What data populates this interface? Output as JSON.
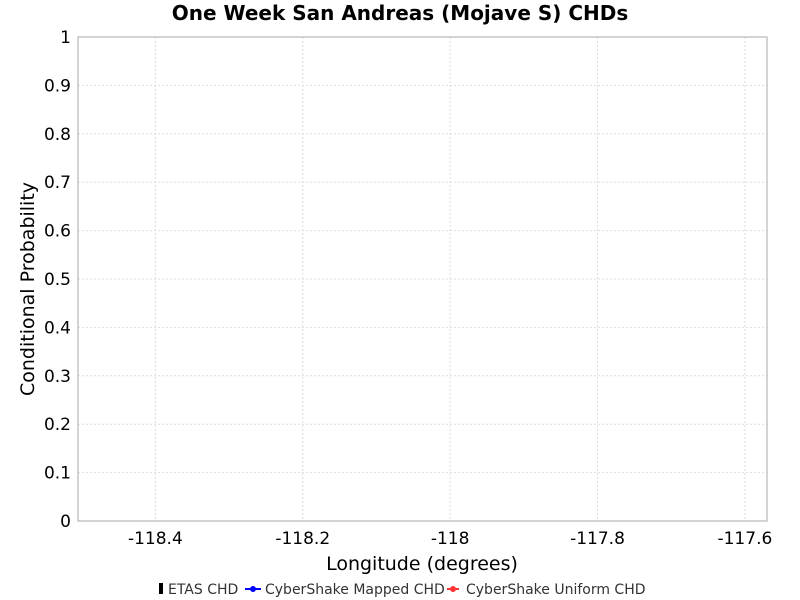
{
  "chart_data": {
    "type": "line",
    "title": "One Week San Andreas (Mojave S) CHDs",
    "xlabel": "Longitude (degrees)",
    "ylabel": "Conditional Probability",
    "xlim": [
      -118.505,
      -117.57
    ],
    "ylim": [
      0,
      1
    ],
    "x_ticks": [
      -118.4,
      -118.2,
      -118,
      -117.8,
      -117.6
    ],
    "x_tick_labels": [
      "-118.4",
      "-118.2",
      "-118",
      "-117.8",
      "-117.6"
    ],
    "y_ticks": [
      0,
      0.1,
      0.2,
      0.3,
      0.4,
      0.5,
      0.6,
      0.7,
      0.8,
      0.9,
      1
    ],
    "y_tick_labels": [
      "0",
      "0.1",
      "0.2",
      "0.3",
      "0.4",
      "0.5",
      "0.6",
      "0.7",
      "0.8",
      "0.9",
      "1"
    ],
    "grid": true,
    "legend_position": "bottom",
    "series": [
      {
        "name": "ETAS CHD",
        "marker": "bar",
        "color": "#000000",
        "x": [],
        "y": []
      },
      {
        "name": "CyberShake Mapped CHD",
        "marker": "circle",
        "color": "#0000ff",
        "x": [],
        "y": []
      },
      {
        "name": "CyberShake Uniform CHD",
        "marker": "circle",
        "color": "#ff3333",
        "x": [],
        "y": []
      }
    ]
  }
}
